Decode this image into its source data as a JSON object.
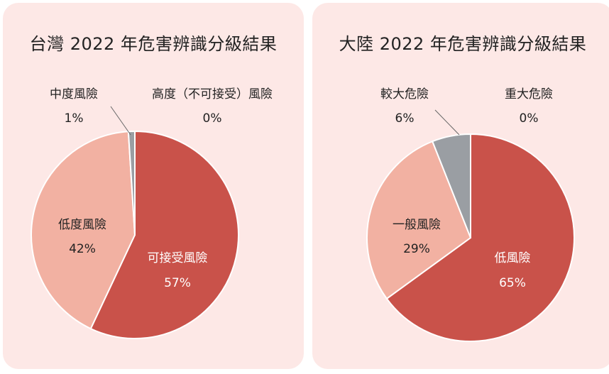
{
  "chart_data": [
    {
      "type": "pie",
      "title": "台灣 2022 年危害辨識分級結果",
      "slices": [
        {
          "label": "可接受風險",
          "value": 57,
          "display": "57%",
          "color": "#c9524a"
        },
        {
          "label": "低度風險",
          "value": 42,
          "display": "42%",
          "color": "#f2b1a2"
        },
        {
          "label": "中度風險",
          "value": 1,
          "display": "1%",
          "color": "#9a9ea3"
        },
        {
          "label": "高度（不可接受）風險",
          "value": 0,
          "display": "0%",
          "color": "#5a5a5a"
        }
      ]
    },
    {
      "type": "pie",
      "title": "大陸 2022 年危害辨識分級結果",
      "slices": [
        {
          "label": "低風險",
          "value": 65,
          "display": "65%",
          "color": "#c9524a"
        },
        {
          "label": "一般風險",
          "value": 29,
          "display": "29%",
          "color": "#f2b1a2"
        },
        {
          "label": "較大危險",
          "value": 6,
          "display": "6%",
          "color": "#9a9ea3"
        },
        {
          "label": "重大危險",
          "value": 0,
          "display": "0%",
          "color": "#5a5a5a"
        }
      ]
    }
  ]
}
